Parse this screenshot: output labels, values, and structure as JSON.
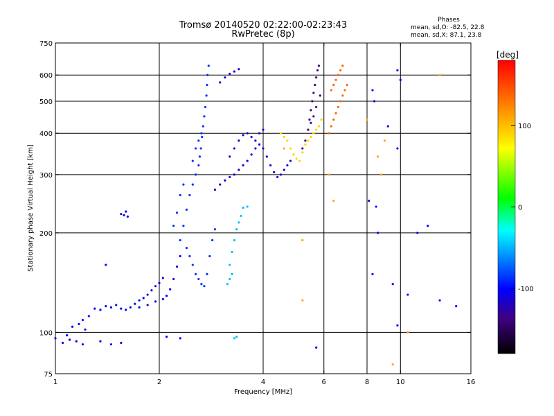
{
  "chart_data": {
    "type": "scatter",
    "title": "Tromsø 20140520 02:22:00-02:23:43",
    "subtitle": "RwPretec (8p)",
    "xlabel": "Frequency [MHz]",
    "ylabel": "Stationary phase Virtual Height [km]",
    "x_scale": "log",
    "y_scale": "log",
    "xlim": [
      1,
      16
    ],
    "ylim": [
      75,
      750
    ],
    "x_ticks": [
      1,
      2,
      4,
      6,
      8,
      10,
      16
    ],
    "y_ticks": [
      75,
      100,
      200,
      300,
      400,
      500,
      600,
      750
    ],
    "x_gridlines": [
      2,
      4,
      6,
      8,
      10
    ],
    "y_gridlines": [
      100,
      200,
      300,
      400,
      500,
      600
    ],
    "grid": true,
    "stats": {
      "heading": "Phases",
      "line_o": "mean, sd,O: -82.5, 22.8",
      "line_x": "mean, sd,X:  87.1, 23.8"
    },
    "colorbar": {
      "label": "[deg]",
      "min": -180,
      "max": 180,
      "ticks": [
        100,
        0,
        -100
      ],
      "colors": [
        "#ff0000",
        "#ff8000",
        "#ffff00",
        "#00ff00",
        "#00ffff",
        "#0080ff",
        "#0000ff",
        "#400080",
        "#000000"
      ]
    },
    "series": [
      {
        "phase": -105,
        "points": [
          [
            1.0,
            96
          ],
          [
            1.05,
            93
          ],
          [
            1.1,
            95
          ],
          [
            1.15,
            94
          ],
          [
            1.2,
            92
          ],
          [
            1.08,
            98
          ],
          [
            1.12,
            104
          ],
          [
            1.17,
            106
          ],
          [
            1.2,
            109
          ],
          [
            1.25,
            112
          ],
          [
            1.22,
            102
          ],
          [
            1.3,
            118
          ],
          [
            1.35,
            117
          ],
          [
            1.4,
            120
          ],
          [
            1.45,
            119
          ],
          [
            1.5,
            121
          ],
          [
            1.55,
            118
          ],
          [
            1.6,
            117
          ],
          [
            1.65,
            119
          ],
          [
            1.7,
            122
          ],
          [
            1.75,
            125
          ],
          [
            1.8,
            127
          ],
          [
            1.85,
            130
          ],
          [
            1.9,
            134
          ],
          [
            1.95,
            138
          ],
          [
            2.0,
            141
          ],
          [
            2.05,
            146
          ],
          [
            1.75,
            119
          ],
          [
            1.85,
            121
          ],
          [
            1.95,
            124
          ],
          [
            2.05,
            126
          ],
          [
            2.1,
            129
          ],
          [
            2.15,
            135
          ],
          [
            2.2,
            145
          ],
          [
            2.25,
            158
          ],
          [
            2.3,
            170
          ],
          [
            1.55,
            228
          ],
          [
            1.6,
            232
          ],
          [
            1.62,
            224
          ],
          [
            1.58,
            226
          ]
        ]
      },
      {
        "phase": -85,
        "points": [
          [
            2.3,
            190
          ],
          [
            2.35,
            210
          ],
          [
            2.4,
            235
          ],
          [
            2.45,
            260
          ],
          [
            2.5,
            280
          ],
          [
            2.55,
            300
          ],
          [
            2.6,
            320
          ],
          [
            2.62,
            340
          ],
          [
            2.64,
            360
          ],
          [
            2.66,
            390
          ],
          [
            2.68,
            420
          ],
          [
            2.7,
            450
          ],
          [
            2.72,
            480
          ],
          [
            2.74,
            520
          ],
          [
            2.75,
            560
          ],
          [
            2.76,
            600
          ],
          [
            2.78,
            640
          ],
          [
            2.4,
            180
          ],
          [
            2.45,
            170
          ],
          [
            2.5,
            160
          ],
          [
            2.55,
            150
          ],
          [
            2.6,
            145
          ],
          [
            2.65,
            140
          ],
          [
            2.7,
            138
          ],
          [
            2.75,
            150
          ],
          [
            2.8,
            170
          ],
          [
            2.85,
            190
          ],
          [
            2.9,
            205
          ],
          [
            2.2,
            210
          ],
          [
            2.25,
            230
          ],
          [
            2.3,
            260
          ],
          [
            2.35,
            280
          ],
          [
            2.5,
            330
          ],
          [
            2.55,
            360
          ],
          [
            2.6,
            380
          ],
          [
            2.65,
            400
          ]
        ]
      },
      {
        "phase": -40,
        "points": [
          [
            3.15,
            140
          ],
          [
            3.2,
            145
          ],
          [
            3.25,
            150
          ],
          [
            3.2,
            160
          ],
          [
            3.25,
            175
          ],
          [
            3.3,
            190
          ],
          [
            3.35,
            205
          ],
          [
            3.4,
            215
          ],
          [
            3.45,
            225
          ],
          [
            3.5,
            238
          ],
          [
            3.6,
            240
          ],
          [
            3.3,
            96
          ],
          [
            3.35,
            97
          ]
        ]
      },
      {
        "phase": -115,
        "points": [
          [
            2.9,
            270
          ],
          [
            3.0,
            280
          ],
          [
            3.1,
            288
          ],
          [
            3.2,
            295
          ],
          [
            3.3,
            300
          ],
          [
            3.4,
            310
          ],
          [
            3.5,
            320
          ],
          [
            3.6,
            330
          ],
          [
            3.7,
            345
          ],
          [
            3.8,
            360
          ],
          [
            3.9,
            370
          ],
          [
            4.0,
            360
          ],
          [
            4.1,
            340
          ],
          [
            4.2,
            320
          ],
          [
            4.3,
            305
          ],
          [
            4.4,
            295
          ],
          [
            4.5,
            300
          ],
          [
            4.6,
            310
          ],
          [
            4.7,
            320
          ],
          [
            4.8,
            330
          ],
          [
            3.2,
            340
          ],
          [
            3.3,
            360
          ],
          [
            3.4,
            380
          ],
          [
            3.5,
            395
          ],
          [
            3.6,
            400
          ],
          [
            3.7,
            390
          ],
          [
            3.8,
            380
          ],
          [
            3.9,
            400
          ],
          [
            4.0,
            410
          ],
          [
            3.0,
            570
          ],
          [
            3.1,
            590
          ],
          [
            3.2,
            605
          ],
          [
            3.3,
            615
          ],
          [
            3.4,
            625
          ]
        ]
      },
      {
        "phase": -140,
        "points": [
          [
            5.2,
            360
          ],
          [
            5.3,
            380
          ],
          [
            5.4,
            410
          ],
          [
            5.45,
            440
          ],
          [
            5.5,
            470
          ],
          [
            5.55,
            500
          ],
          [
            5.6,
            530
          ],
          [
            5.65,
            560
          ],
          [
            5.7,
            590
          ],
          [
            5.75,
            620
          ],
          [
            5.8,
            640
          ],
          [
            5.6,
            450
          ],
          [
            5.5,
            430
          ],
          [
            5.7,
            480
          ],
          [
            5.85,
            520
          ]
        ]
      },
      {
        "phase": 110,
        "points": [
          [
            4.5,
            400
          ],
          [
            4.6,
            390
          ],
          [
            4.7,
            380
          ],
          [
            4.8,
            360
          ],
          [
            4.9,
            345
          ],
          [
            5.0,
            335
          ],
          [
            5.1,
            330
          ],
          [
            5.2,
            350
          ],
          [
            5.3,
            370
          ],
          [
            5.4,
            380
          ],
          [
            5.5,
            390
          ],
          [
            5.6,
            400
          ],
          [
            5.7,
            410
          ],
          [
            5.8,
            420
          ],
          [
            5.9,
            440
          ]
        ]
      },
      {
        "phase": 140,
        "points": [
          [
            6.2,
            400
          ],
          [
            6.3,
            420
          ],
          [
            6.4,
            440
          ],
          [
            6.5,
            460
          ],
          [
            6.6,
            480
          ],
          [
            6.7,
            500
          ],
          [
            6.8,
            520
          ],
          [
            6.9,
            540
          ],
          [
            7.0,
            560
          ],
          [
            6.5,
            580
          ],
          [
            6.6,
            600
          ],
          [
            6.7,
            620
          ],
          [
            6.8,
            640
          ],
          [
            6.3,
            540
          ],
          [
            6.4,
            560
          ]
        ]
      },
      {
        "phase": -100,
        "points": [
          [
            8.3,
            540
          ],
          [
            8.4,
            500
          ],
          [
            9.8,
            620
          ],
          [
            10.0,
            580
          ],
          [
            9.2,
            420
          ],
          [
            9.8,
            360
          ],
          [
            8.1,
            250
          ],
          [
            8.5,
            240
          ],
          [
            8.6,
            200
          ],
          [
            11.2,
            200
          ],
          [
            12.0,
            210
          ],
          [
            8.3,
            150
          ],
          [
            9.5,
            140
          ],
          [
            10.5,
            130
          ],
          [
            13.0,
            125
          ],
          [
            14.5,
            120
          ],
          [
            9.8,
            105
          ],
          [
            5.7,
            90
          ],
          [
            2.1,
            97
          ],
          [
            2.3,
            96
          ],
          [
            1.35,
            94
          ],
          [
            1.45,
            92
          ],
          [
            1.55,
            93
          ],
          [
            1.4,
            160
          ]
        ]
      },
      {
        "phase": 120,
        "points": [
          [
            9.0,
            380
          ],
          [
            8.6,
            340
          ],
          [
            8.8,
            300
          ],
          [
            6.2,
            300
          ],
          [
            6.4,
            250
          ],
          [
            4.6,
            360
          ],
          [
            5.2,
            190
          ],
          [
            5.2,
            125
          ],
          [
            10.5,
            100
          ],
          [
            13.0,
            600
          ],
          [
            8.0,
            440
          ],
          [
            9.5,
            80
          ]
        ]
      }
    ]
  }
}
